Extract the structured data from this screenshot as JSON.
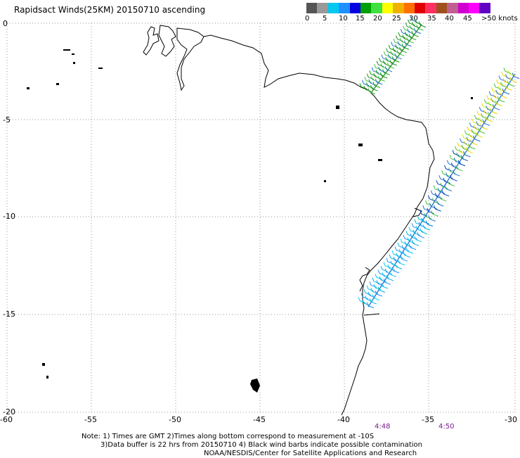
{
  "title": "Rapidsact Winds(25KM) 20150710 ascending",
  "legend": {
    "labels": [
      "0",
      "5",
      "10",
      "15",
      "20",
      "25",
      "30",
      "35",
      "40",
      "45",
      ">50 knots"
    ],
    "colors": [
      "#555555",
      "#999999",
      "#00c8f0",
      "#1e90ff",
      "#0000e0",
      "#00a000",
      "#40e040",
      "#ffff00",
      "#f0b000",
      "#ff7000",
      "#e00000",
      "#ff3060",
      "#a05020",
      "#c06090",
      "#d000d0",
      "#ff00ff",
      "#6000c0"
    ]
  },
  "map": {
    "lon_labels": [
      "-60",
      "-55",
      "-50",
      "-45",
      "-40",
      "-35",
      "-30"
    ],
    "lat_labels": [
      "0",
      "-5",
      "-10",
      "-15",
      "-20"
    ],
    "pass_times": [
      "4:48",
      "4:50"
    ]
  },
  "notes": [
    "Note: 1) Times are GMT 2)Times along bottom correspond to measurement at -10S",
    "3)Data buffer is 22 hrs from 20150710 4) Black wind barbs indicate possible contamination",
    "NOAA/NESDIS/Center for Satellite Applications and Research"
  ]
}
